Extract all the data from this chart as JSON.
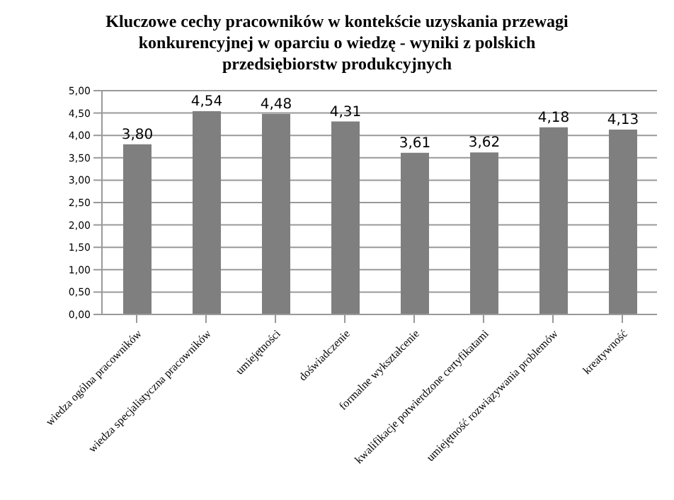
{
  "chart_data": {
    "type": "bar",
    "title": "Kluczowe cechy pracowników w kontekście uzyskania przewagi konkurencyjnej w oparciu o wiedzę - wyniki z polskich przedsiębiorstw produkcyjnych",
    "categories": [
      "wiedza ogólna pracowników",
      "wiedza specjalistyczna pracowników",
      "umiejętności",
      "doświadczenie",
      "formalne wykształcenie",
      "kwalifikacje potwierdzone certyfikatami",
      "umiejętność rozwiązywania problemów",
      "kreatywność"
    ],
    "values": [
      3.8,
      4.54,
      4.48,
      4.31,
      3.61,
      3.62,
      4.18,
      4.13
    ],
    "value_labels": [
      "3,80",
      "4,54",
      "4,48",
      "4,31",
      "3,61",
      "3,62",
      "4,18",
      "4,13"
    ],
    "color": "#7f7f7f",
    "ylim": [
      0,
      5
    ],
    "yticks": [
      {
        "value": 0,
        "label": "0,00"
      },
      {
        "value": 0.5,
        "label": "0,50"
      },
      {
        "value": 1,
        "label": "1,00"
      },
      {
        "value": 1.5,
        "label": "1,50"
      },
      {
        "value": 2,
        "label": "2,00"
      },
      {
        "value": 2.5,
        "label": "2,50"
      },
      {
        "value": 3,
        "label": "3,00"
      },
      {
        "value": 3.5,
        "label": "3,50"
      },
      {
        "value": 4,
        "label": "4,00"
      },
      {
        "value": 4.5,
        "label": "4,50"
      },
      {
        "value": 5,
        "label": "5,00"
      }
    ],
    "grid": "y"
  }
}
